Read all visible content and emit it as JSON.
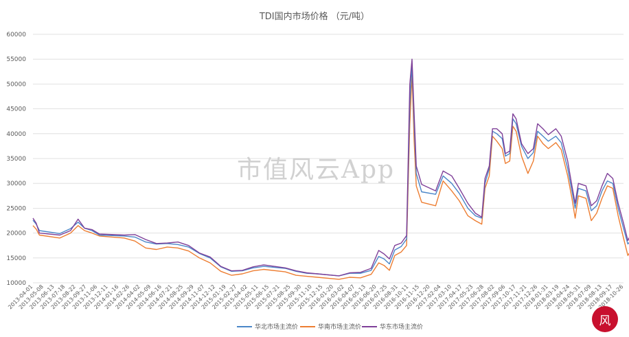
{
  "chart_data": {
    "type": "line",
    "title": "TDI国内市场价格    （元/吨）",
    "xlabel": "",
    "ylabel": "",
    "ylim": [
      10000,
      60000
    ],
    "yticks": [
      10000,
      15000,
      20000,
      25000,
      30000,
      35000,
      40000,
      45000,
      50000,
      55000,
      60000
    ],
    "grid": true,
    "legend": "bottom",
    "x_ticks": [
      "2013-04-01",
      "2013-05-08",
      "2013-06-13",
      "2013-07-18",
      "2013-08-22",
      "2013-09-27",
      "2013-11-06",
      "2013-12-11",
      "2014-01-16",
      "2014-02-26",
      "2014-04-02",
      "2014-05-09",
      "2014-06-16",
      "2014-07-21",
      "2014-08-25",
      "2014-09-29",
      "2014-11-07",
      "2014-12-12",
      "2015-01-19",
      "2015-02-27",
      "2015-04-02",
      "2015-05-11",
      "2015-06-15",
      "2015-07-21",
      "2015-08-25",
      "2015-09-30",
      "2015-11-10",
      "2015-12-15",
      "2016-01-20",
      "2016-03-02",
      "2016-04-07",
      "2016-05-13",
      "2016-06-20",
      "2016-07-25",
      "2016-08-31",
      "2016-10-11",
      "2016-11-15",
      "2016-12-20",
      "2017-02-04",
      "2017-03-10",
      "2017-04-17",
      "2017-05-23",
      "2017-06-28",
      "2017-08-02",
      "2017-09-06",
      "2017-10-17",
      "2017-11-21",
      "2017-12-26",
      "2018-01-31",
      "2018-03-19",
      "2018-04-24",
      "2018-05-31",
      "2018-07-09",
      "2018-08-13",
      "2018-09-17",
      "2018-10-26"
    ],
    "series": [
      {
        "name": "华北市场主流价",
        "color": "#4a86c8",
        "points": [
          [
            0,
            22600
          ],
          [
            0.3,
            21800
          ],
          [
            0.6,
            20500
          ],
          [
            2.5,
            19900
          ],
          [
            3.5,
            20900
          ],
          [
            4.2,
            22200
          ],
          [
            4.8,
            21000
          ],
          [
            5.5,
            20500
          ],
          [
            6.2,
            19600
          ],
          [
            8.5,
            19400
          ],
          [
            9.5,
            19200
          ],
          [
            10.5,
            18200
          ],
          [
            11.5,
            17800
          ],
          [
            12.5,
            17900
          ],
          [
            13.5,
            17700
          ],
          [
            14.5,
            17200
          ],
          [
            15.5,
            15900
          ],
          [
            16.5,
            15000
          ],
          [
            17.5,
            13200
          ],
          [
            18.5,
            12300
          ],
          [
            19.5,
            12400
          ],
          [
            20.5,
            13000
          ],
          [
            21.5,
            13300
          ],
          [
            23.5,
            12900
          ],
          [
            24.5,
            12300
          ],
          [
            25.5,
            11900
          ],
          [
            26.5,
            11800
          ],
          [
            28.5,
            11400
          ],
          [
            29.5,
            11900
          ],
          [
            30.5,
            11900
          ],
          [
            31.5,
            12500
          ],
          [
            32.2,
            15300
          ],
          [
            32.7,
            14800
          ],
          [
            33.2,
            13800
          ],
          [
            33.7,
            16600
          ],
          [
            34.3,
            17300
          ],
          [
            34.8,
            18800
          ],
          [
            35.1,
            46000
          ],
          [
            35.3,
            53800
          ],
          [
            35.5,
            42000
          ],
          [
            35.7,
            32000
          ],
          [
            36.2,
            28300
          ],
          [
            37.5,
            27800
          ],
          [
            38.2,
            31500
          ],
          [
            39.0,
            30000
          ],
          [
            39.7,
            28000
          ],
          [
            40.5,
            25000
          ],
          [
            41.2,
            23500
          ],
          [
            41.8,
            23000
          ],
          [
            42.1,
            30000
          ],
          [
            42.5,
            33000
          ],
          [
            42.8,
            40500
          ],
          [
            43.2,
            40000
          ],
          [
            43.7,
            39000
          ],
          [
            44.0,
            35500
          ],
          [
            44.4,
            36000
          ],
          [
            44.7,
            43000
          ],
          [
            45.0,
            42000
          ],
          [
            45.5,
            37500
          ],
          [
            46.1,
            35000
          ],
          [
            46.6,
            36200
          ],
          [
            47.0,
            40500
          ],
          [
            47.5,
            39500
          ],
          [
            48.0,
            38500
          ],
          [
            48.7,
            39500
          ],
          [
            49.2,
            38200
          ],
          [
            49.8,
            33000
          ],
          [
            50.2,
            28500
          ],
          [
            50.5,
            25000
          ],
          [
            50.8,
            29000
          ],
          [
            51.5,
            28500
          ],
          [
            52.0,
            24500
          ],
          [
            52.5,
            25500
          ],
          [
            53.0,
            28500
          ],
          [
            53.5,
            30500
          ],
          [
            54.0,
            30000
          ],
          [
            54.5,
            25000
          ],
          [
            55.0,
            21000
          ],
          [
            55.4,
            17800
          ],
          [
            55.7,
            18500
          ],
          [
            56.0,
            19000
          ]
        ]
      },
      {
        "name": "华南市场主流价",
        "color": "#ed7d31",
        "points": [
          [
            0,
            21500
          ],
          [
            0.3,
            20800
          ],
          [
            0.6,
            19600
          ],
          [
            2.5,
            19000
          ],
          [
            3.5,
            20000
          ],
          [
            4.2,
            21500
          ],
          [
            4.8,
            20500
          ],
          [
            5.5,
            20000
          ],
          [
            6.2,
            19400
          ],
          [
            8.5,
            19000
          ],
          [
            9.5,
            18400
          ],
          [
            10.5,
            17000
          ],
          [
            11.5,
            16700
          ],
          [
            12.5,
            17200
          ],
          [
            13.5,
            17000
          ],
          [
            14.5,
            16400
          ],
          [
            15.5,
            15000
          ],
          [
            16.5,
            14000
          ],
          [
            17.5,
            12300
          ],
          [
            18.5,
            11500
          ],
          [
            19.5,
            11800
          ],
          [
            20.5,
            12400
          ],
          [
            21.5,
            12700
          ],
          [
            23.5,
            12200
          ],
          [
            24.5,
            11500
          ],
          [
            25.5,
            11300
          ],
          [
            26.5,
            11100
          ],
          [
            28.5,
            10700
          ],
          [
            29.5,
            11100
          ],
          [
            30.5,
            11000
          ],
          [
            31.5,
            11700
          ],
          [
            32.2,
            14000
          ],
          [
            32.7,
            13500
          ],
          [
            33.2,
            12500
          ],
          [
            33.7,
            15500
          ],
          [
            34.3,
            16200
          ],
          [
            34.8,
            17500
          ],
          [
            35.1,
            42000
          ],
          [
            35.3,
            52000
          ],
          [
            35.5,
            38500
          ],
          [
            35.7,
            29500
          ],
          [
            36.2,
            26200
          ],
          [
            37.5,
            25500
          ],
          [
            38.2,
            30500
          ],
          [
            39.0,
            28500
          ],
          [
            39.7,
            26500
          ],
          [
            40.5,
            23500
          ],
          [
            41.2,
            22500
          ],
          [
            41.8,
            21800
          ],
          [
            42.1,
            29000
          ],
          [
            42.5,
            31500
          ],
          [
            42.8,
            39500
          ],
          [
            43.2,
            38500
          ],
          [
            43.7,
            37000
          ],
          [
            44.0,
            34000
          ],
          [
            44.4,
            34500
          ],
          [
            44.7,
            41500
          ],
          [
            45.0,
            40500
          ],
          [
            45.5,
            35500
          ],
          [
            46.1,
            32000
          ],
          [
            46.6,
            34500
          ],
          [
            47.0,
            39500
          ],
          [
            47.5,
            38000
          ],
          [
            48.0,
            37000
          ],
          [
            48.7,
            38200
          ],
          [
            49.2,
            36800
          ],
          [
            49.8,
            31500
          ],
          [
            50.2,
            27000
          ],
          [
            50.5,
            23000
          ],
          [
            50.8,
            27500
          ],
          [
            51.5,
            27000
          ],
          [
            52.0,
            22500
          ],
          [
            52.5,
            24000
          ],
          [
            53.0,
            27000
          ],
          [
            53.5,
            29500
          ],
          [
            54.0,
            29000
          ],
          [
            54.5,
            23500
          ],
          [
            55.0,
            19000
          ],
          [
            55.4,
            15500
          ],
          [
            55.7,
            16500
          ],
          [
            56.0,
            17800
          ]
        ]
      },
      {
        "name": "华东市场主流价",
        "color": "#7e3f98",
        "points": [
          [
            0,
            23000
          ],
          [
            0.3,
            22000
          ],
          [
            0.6,
            20000
          ],
          [
            2.5,
            19600
          ],
          [
            3.5,
            20500
          ],
          [
            4.2,
            22800
          ],
          [
            4.8,
            21000
          ],
          [
            5.5,
            20700
          ],
          [
            6.2,
            19800
          ],
          [
            8.5,
            19600
          ],
          [
            9.5,
            19700
          ],
          [
            10.5,
            18700
          ],
          [
            11.5,
            17900
          ],
          [
            12.5,
            18000
          ],
          [
            13.5,
            18200
          ],
          [
            14.5,
            17500
          ],
          [
            15.5,
            16000
          ],
          [
            16.5,
            15200
          ],
          [
            17.5,
            13300
          ],
          [
            18.5,
            12400
          ],
          [
            19.5,
            12500
          ],
          [
            20.5,
            13200
          ],
          [
            21.5,
            13600
          ],
          [
            23.5,
            13000
          ],
          [
            24.5,
            12400
          ],
          [
            25.5,
            12000
          ],
          [
            26.5,
            11800
          ],
          [
            28.5,
            11400
          ],
          [
            29.5,
            12000
          ],
          [
            30.5,
            12100
          ],
          [
            31.5,
            12900
          ],
          [
            32.2,
            16500
          ],
          [
            32.7,
            15800
          ],
          [
            33.2,
            14800
          ],
          [
            33.7,
            17500
          ],
          [
            34.3,
            18000
          ],
          [
            34.8,
            19500
          ],
          [
            35.1,
            50000
          ],
          [
            35.3,
            55000
          ],
          [
            35.5,
            44000
          ],
          [
            35.7,
            33500
          ],
          [
            36.2,
            29800
          ],
          [
            37.5,
            28500
          ],
          [
            38.2,
            32500
          ],
          [
            39.0,
            31500
          ],
          [
            39.7,
            29000
          ],
          [
            40.5,
            26000
          ],
          [
            41.2,
            24000
          ],
          [
            41.8,
            23200
          ],
          [
            42.1,
            31000
          ],
          [
            42.5,
            33500
          ],
          [
            42.8,
            41000
          ],
          [
            43.2,
            41000
          ],
          [
            43.7,
            40000
          ],
          [
            44.0,
            36000
          ],
          [
            44.4,
            36500
          ],
          [
            44.7,
            44000
          ],
          [
            45.0,
            43000
          ],
          [
            45.5,
            38000
          ],
          [
            46.1,
            36000
          ],
          [
            46.6,
            37000
          ],
          [
            47.0,
            42000
          ],
          [
            47.5,
            41000
          ],
          [
            48.0,
            39800
          ],
          [
            48.7,
            41000
          ],
          [
            49.2,
            39500
          ],
          [
            49.8,
            34500
          ],
          [
            50.2,
            29500
          ],
          [
            50.5,
            26000
          ],
          [
            50.8,
            30000
          ],
          [
            51.5,
            29500
          ],
          [
            52.0,
            25500
          ],
          [
            52.5,
            26500
          ],
          [
            53.0,
            29500
          ],
          [
            53.5,
            32000
          ],
          [
            54.0,
            31000
          ],
          [
            54.5,
            26000
          ],
          [
            55.0,
            22000
          ],
          [
            55.4,
            18500
          ],
          [
            55.7,
            19800
          ],
          [
            56.0,
            20500
          ]
        ]
      }
    ]
  },
  "watermark": "市值风云App",
  "seal": "风"
}
